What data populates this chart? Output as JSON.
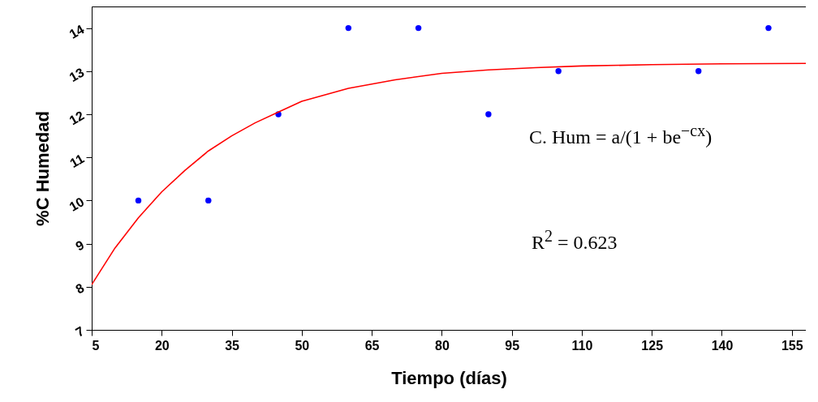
{
  "chart_data": {
    "type": "scatter",
    "xlabel": "Tiempo (días)",
    "ylabel": "%C Humedad",
    "xlim": [
      5,
      158
    ],
    "xticks": [
      5,
      20,
      35,
      50,
      65,
      80,
      95,
      110,
      125,
      140,
      155
    ],
    "ylim": [
      7,
      14.5
    ],
    "yticks": [
      7,
      8,
      9,
      10,
      11,
      12,
      13,
      14
    ],
    "grid": false,
    "marker": "circle",
    "annotations": [
      "C. Hum = a/(1 + be$^{−cx}$)",
      "R$^{2}$ = 0.623"
    ],
    "series": [
      {
        "color": "#0000ff",
        "x": [
          15,
          30,
          45,
          60,
          75,
          90,
          105,
          135,
          150
        ],
        "values": [
          10,
          10,
          12,
          14,
          14,
          12,
          13,
          13,
          14
        ]
      },
      {
        "type": "line",
        "color": "#ff0000",
        "marker": "none",
        "line_style": "solid",
        "x": [
          5,
          10,
          15,
          20,
          25,
          30,
          35,
          40,
          45,
          50,
          55,
          60,
          70,
          80,
          90,
          100,
          110,
          125,
          140,
          158
        ],
        "values": [
          8.05,
          8.9,
          9.6,
          10.2,
          10.7,
          11.15,
          11.5,
          11.8,
          12.05,
          12.3,
          12.45,
          12.6,
          12.8,
          12.95,
          13.03,
          13.08,
          13.12,
          13.15,
          13.17,
          13.18
        ]
      }
    ]
  }
}
